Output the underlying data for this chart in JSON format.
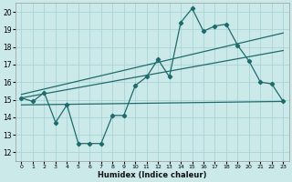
{
  "xlabel": "Humidex (Indice chaleur)",
  "xlim": [
    -0.5,
    23.5
  ],
  "ylim": [
    11.5,
    20.5
  ],
  "yticks": [
    12,
    13,
    14,
    15,
    16,
    17,
    18,
    19,
    20
  ],
  "xticks": [
    0,
    1,
    2,
    3,
    4,
    5,
    6,
    7,
    8,
    9,
    10,
    11,
    12,
    13,
    14,
    15,
    16,
    17,
    18,
    19,
    20,
    21,
    22,
    23
  ],
  "bg_color": "#cce9ea",
  "grid_color": "#aad4d6",
  "line_color": "#1e6b6b",
  "jagged": {
    "x": [
      0,
      1,
      2,
      3,
      4,
      5,
      6,
      7,
      8,
      9,
      10,
      11,
      12,
      13,
      14,
      15,
      16,
      17,
      18,
      19,
      20,
      21,
      22,
      23
    ],
    "y": [
      15.1,
      14.9,
      15.4,
      13.7,
      14.7,
      12.5,
      12.5,
      12.5,
      14.1,
      14.1,
      15.8,
      16.3,
      17.3,
      16.3,
      19.4,
      20.2,
      18.9,
      19.2,
      19.3,
      18.1,
      17.2,
      16.0,
      15.9,
      14.9
    ]
  },
  "line1": {
    "x": [
      0,
      23
    ],
    "y": [
      15.3,
      18.8
    ]
  },
  "line2": {
    "x": [
      0,
      23
    ],
    "y": [
      15.1,
      17.8
    ]
  },
  "line3": {
    "x": [
      0,
      23
    ],
    "y": [
      14.7,
      14.9
    ]
  }
}
